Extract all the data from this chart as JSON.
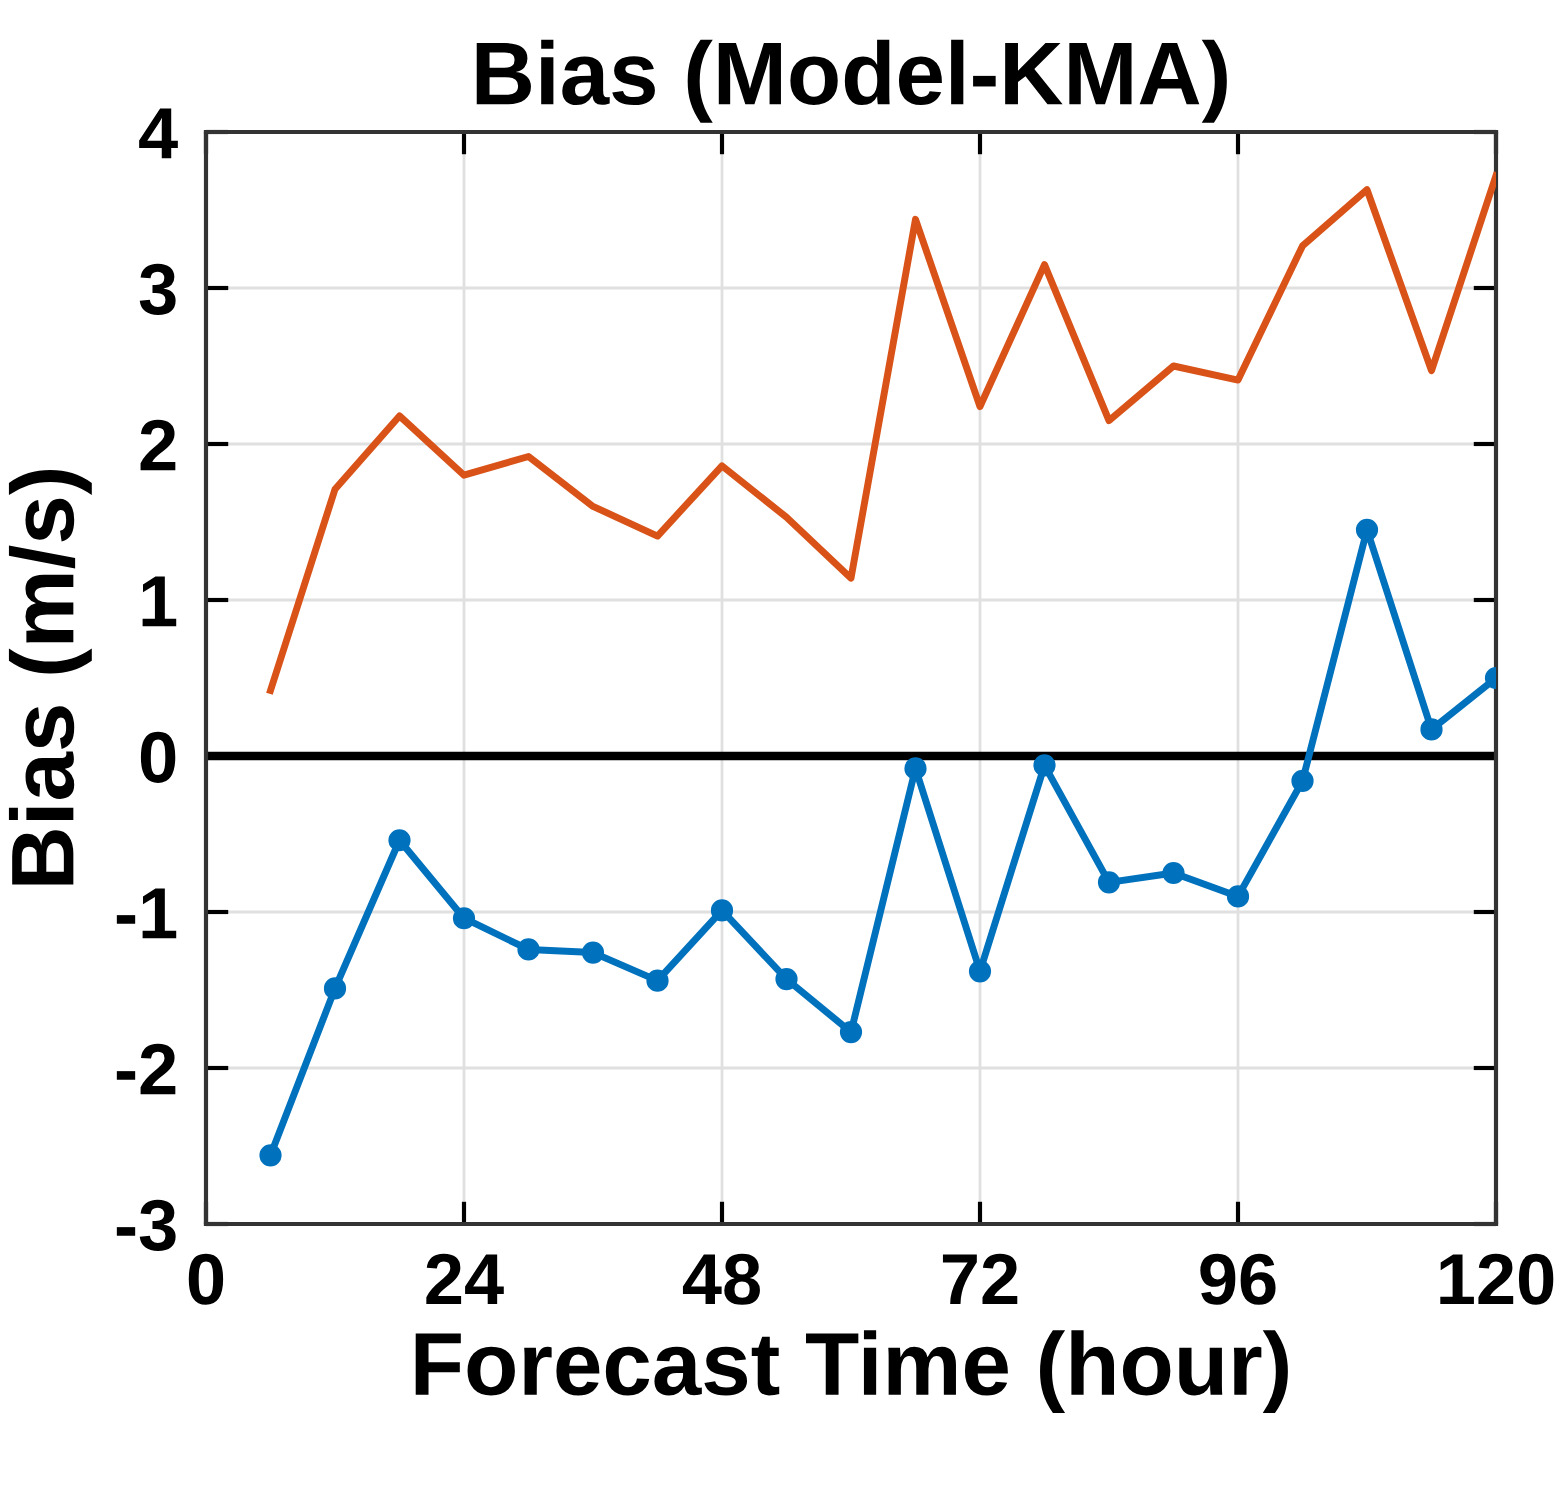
{
  "chart_data": {
    "type": "line",
    "title": "Bias (Model-KMA)",
    "xlabel": "Forecast Time (hour)",
    "ylabel": "Bias (m/s)",
    "x": [
      6,
      12,
      18,
      24,
      30,
      36,
      42,
      48,
      54,
      60,
      66,
      72,
      78,
      84,
      90,
      96,
      102,
      108,
      114,
      120
    ],
    "series": [
      {
        "color": "#d95319",
        "marker": "none",
        "values": [
          0.42,
          1.71,
          2.18,
          1.8,
          1.92,
          1.6,
          1.41,
          1.86,
          1.53,
          1.14,
          3.44,
          2.24,
          3.15,
          2.15,
          2.5,
          2.41,
          3.27,
          3.63,
          2.47,
          3.72
        ]
      },
      {
        "color": "#0072bd",
        "marker": "circle",
        "values": [
          -2.56,
          -1.49,
          -0.54,
          -1.04,
          -1.24,
          -1.26,
          -1.44,
          -0.99,
          -1.43,
          -1.77,
          -0.08,
          -1.38,
          -0.06,
          -0.81,
          -0.75,
          -0.9,
          -0.16,
          1.45,
          0.17,
          0.5
        ]
      }
    ],
    "xlim": [
      0,
      120
    ],
    "xticks": [
      0,
      24,
      48,
      72,
      96,
      120
    ],
    "ylim": [
      -3,
      4
    ],
    "yticks": [
      -3,
      -2,
      -1,
      0,
      1,
      2,
      3,
      4
    ],
    "ref_lines": [
      {
        "axis": "y",
        "value": 0,
        "color": "#000000",
        "line_style": "solid"
      }
    ],
    "grid": true,
    "line_style": "solid"
  }
}
